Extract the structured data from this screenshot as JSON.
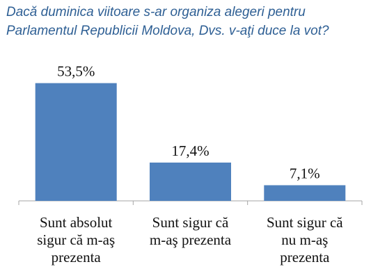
{
  "chart_data": {
    "type": "bar",
    "title": "Dacă duminica viitoare s-ar organiza alegeri pentru Parlamentul Republicii Moldova, Dvs. v-aţi duce la vot?",
    "title_lines": [
      "Dacă duminica viitoare s-ar organiza alegeri pentru",
      "Parlamentul Republicii Moldova, Dvs. v-aţi duce la vot?"
    ],
    "categories": [
      "Sunt absolut sigur că m-aş prezenta",
      "Sunt sigur că m-aş prezenta",
      "Sunt sigur că nu m-aş prezenta"
    ],
    "category_lines": [
      [
        "Sunt absolut",
        "sigur că m-aş",
        "prezenta"
      ],
      [
        "Sunt sigur că",
        "m-aş prezenta"
      ],
      [
        "Sunt sigur că",
        "nu m-aş",
        "prezenta"
      ]
    ],
    "values": [
      53.5,
      17.4,
      7.1
    ],
    "value_labels": [
      "53,5%",
      "17,4%",
      "7,1%"
    ],
    "ylim": [
      0,
      60
    ],
    "xlabel": "",
    "ylabel": "",
    "grid": false,
    "legend": "none",
    "bar_color": "#4f81bd",
    "axis_color": "#a6a6a6",
    "title_color": "#2e5f94"
  }
}
